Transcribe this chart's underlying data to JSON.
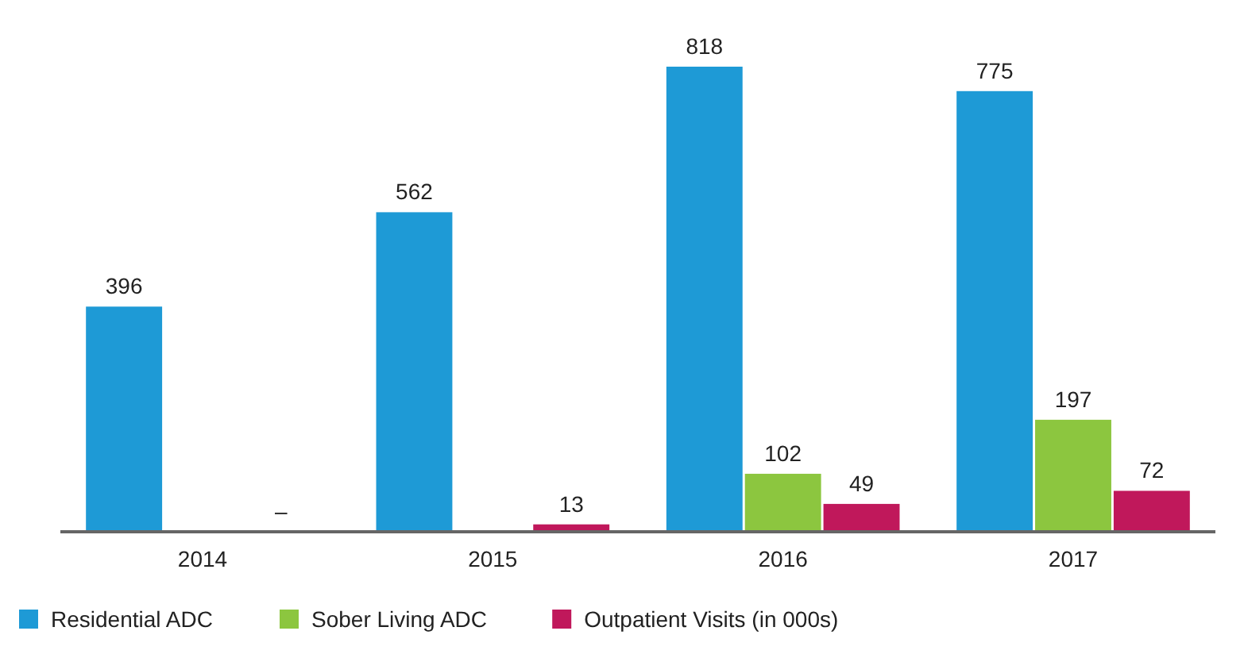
{
  "chart_data": {
    "type": "bar",
    "categories": [
      "2014",
      "2015",
      "2016",
      "2017"
    ],
    "series": [
      {
        "name": "Residential ADC",
        "color": "#1e9ad6",
        "values": [
          396,
          562,
          818,
          775
        ],
        "value_labels": [
          "396",
          "562",
          "818",
          "775"
        ]
      },
      {
        "name": "Sober Living ADC",
        "color": "#8cc63f",
        "values": [
          null,
          null,
          102,
          197
        ],
        "value_labels": [
          null,
          null,
          "102",
          "197"
        ]
      },
      {
        "name": "Outpatient Visits (in 000s)",
        "color": "#c0185b",
        "values": [
          null,
          13,
          49,
          72
        ],
        "value_labels": [
          "–",
          "13",
          "49",
          "72"
        ]
      }
    ],
    "legend": "bottom",
    "grid": false
  }
}
